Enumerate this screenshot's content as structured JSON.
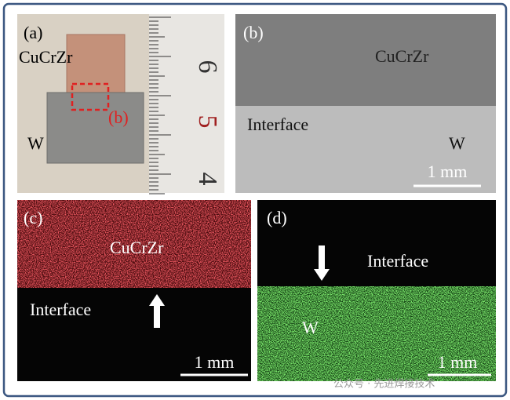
{
  "panel_a": {
    "label": "(a)",
    "top_material": "CuCrZr",
    "bottom_material": "W",
    "marker": "(b)",
    "ruler_labels": [
      "6",
      "5",
      "4"
    ]
  },
  "panel_b": {
    "label": "(b)",
    "top_material": "CuCrZr",
    "interface": "Interface",
    "bottom_material": "W",
    "scale_bar": "1 mm"
  },
  "panel_c": {
    "label": "(c)",
    "top_material": "CuCrZr",
    "interface": "Interface",
    "scale_bar": "1 mm"
  },
  "panel_d": {
    "label": "(d)",
    "interface": "Interface",
    "bottom_material": "W",
    "scale_bar": "1 mm"
  },
  "watermark": "公众号 · 先进焊接技术"
}
